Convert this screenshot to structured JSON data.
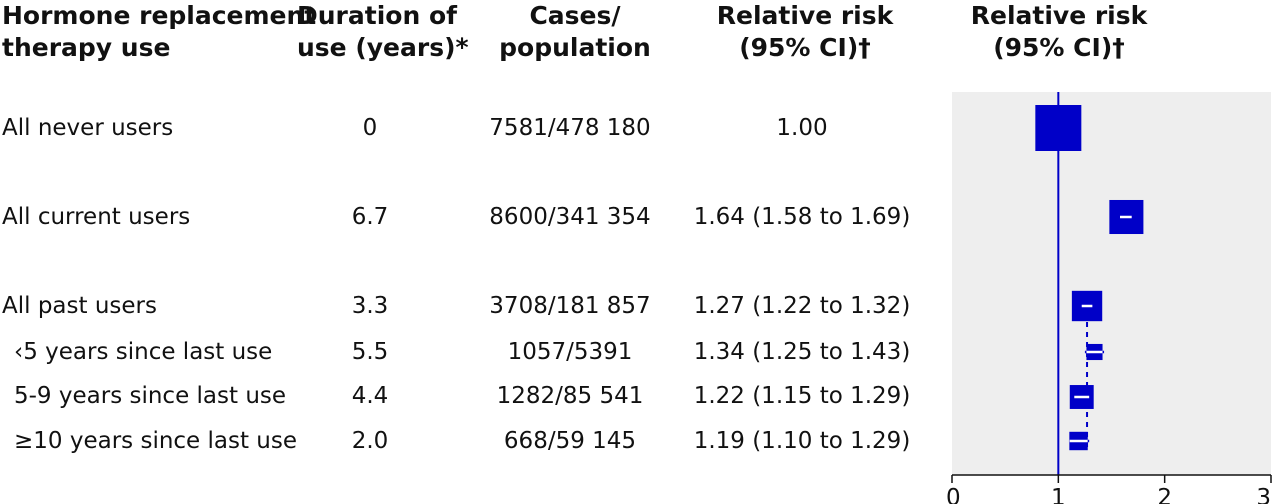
{
  "headers": {
    "col1": [
      "Hormone replacement",
      "therapy use"
    ],
    "col2": [
      "Duration of",
      "use (years)*"
    ],
    "col3": [
      "Cases/",
      "population"
    ],
    "col4": [
      "Relative risk",
      "(95% CI)†"
    ],
    "col5": [
      "Relative risk",
      "(95% CI)†"
    ]
  },
  "rows": [
    {
      "label": "All never users",
      "duration": "0",
      "cases": "7581/478 180",
      "rr_text": "1.00"
    },
    {
      "label": "All current users",
      "duration": "6.7",
      "cases": "8600/341 354",
      "rr_text": "1.64 (1.58 to 1.69)"
    },
    {
      "label": "All past users",
      "duration": "3.3",
      "cases": "3708/181 857",
      "rr_text": "1.27 (1.22 to 1.32)"
    },
    {
      "label": "‹5 years since last use",
      "duration": "5.5",
      "cases": "1057/5391",
      "rr_text": "1.34 (1.25 to 1.43)"
    },
    {
      "label": "5-9 years since last use",
      "duration": "4.4",
      "cases": "1282/85 541",
      "rr_text": "1.22 (1.15 to 1.29)"
    },
    {
      "label": "≥10 years since last use",
      "duration": "2.0",
      "cases": "668/59 145",
      "rr_text": "1.19 (1.10 to 1.29)"
    }
  ],
  "chart_data": {
    "type": "forest",
    "xlim": [
      0,
      3
    ],
    "xticks": [
      "0",
      "1",
      "2",
      "3"
    ],
    "reference_line": 1,
    "grid": false,
    "points": [
      {
        "label": "All never users",
        "rr": 1.0,
        "lo": 1.0,
        "hi": 1.0,
        "weight": 1.0
      },
      {
        "label": "All current users",
        "rr": 1.64,
        "lo": 1.58,
        "hi": 1.69,
        "weight": 0.74
      },
      {
        "label": "All past users",
        "rr": 1.27,
        "lo": 1.22,
        "hi": 1.32,
        "weight": 0.66
      },
      {
        "label": "‹5 years since last use",
        "rr": 1.34,
        "lo": 1.25,
        "hi": 1.43,
        "weight": 0.35
      },
      {
        "label": "5-9 years since last use",
        "rr": 1.22,
        "lo": 1.15,
        "hi": 1.29,
        "weight": 0.52
      },
      {
        "label": "≥10 years since last use",
        "rr": 1.19,
        "lo": 1.1,
        "hi": 1.29,
        "weight": 0.4
      }
    ],
    "subgroup_dashed_at": 1.27,
    "colors": {
      "panel": "#eeeeee",
      "marker": "#0000c8",
      "ci_white": "#ffffff",
      "axis": "#111111"
    }
  }
}
